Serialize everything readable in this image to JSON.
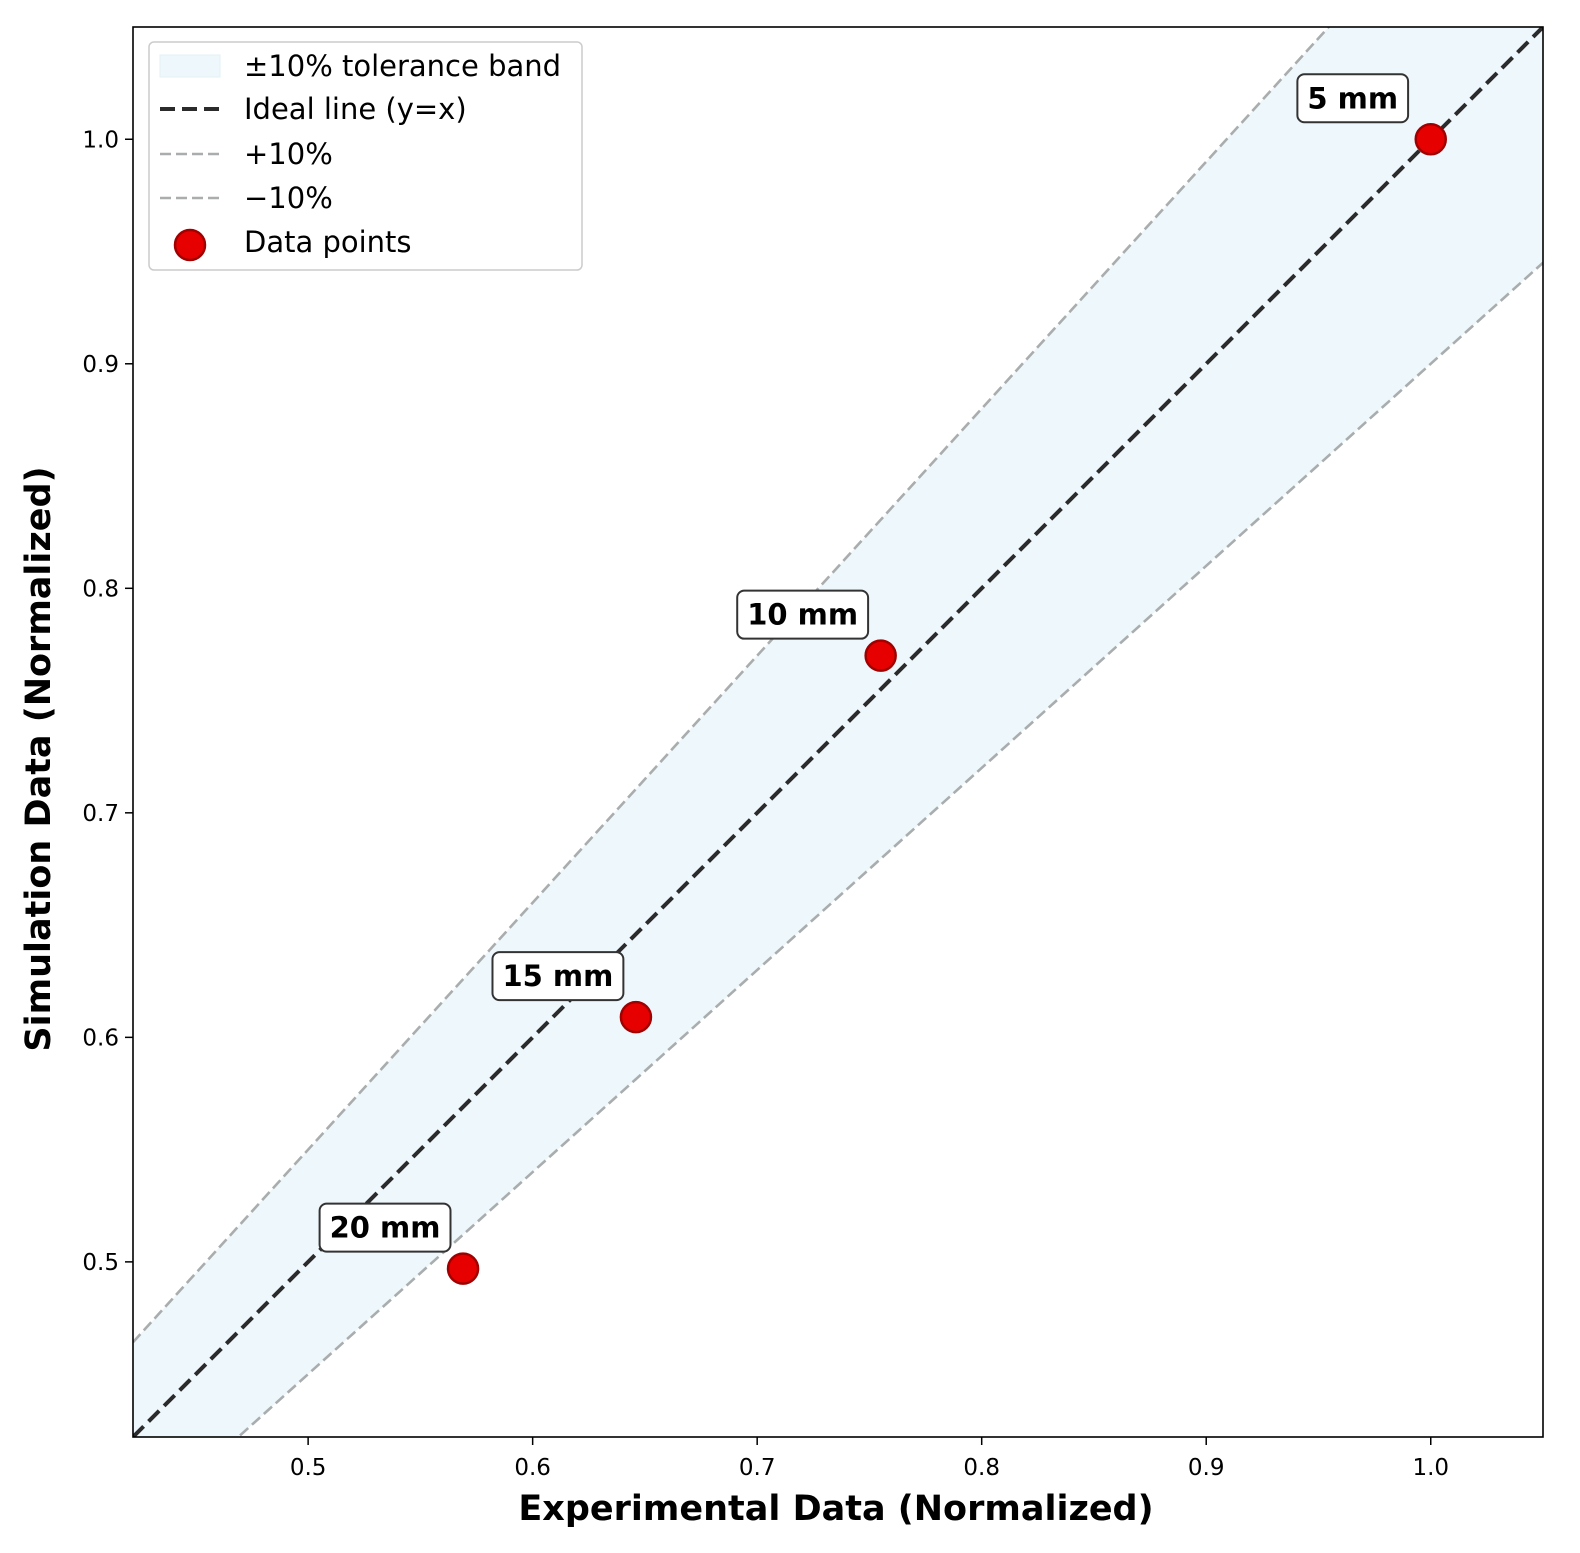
{
  "chart_data": {
    "type": "scatter",
    "title": "",
    "xlabel": "Experimental Data (Normalized)",
    "ylabel": "Simulation Data (Normalized)",
    "xlim": [
      0.422,
      1.05
    ],
    "ylim": [
      0.422,
      1.05
    ],
    "xticks": [
      0.5,
      0.6,
      0.7,
      0.8,
      0.9,
      1.0
    ],
    "yticks": [
      0.5,
      0.6,
      0.7,
      0.8,
      0.9,
      1.0
    ],
    "xtick_labels": [
      "0.5",
      "0.6",
      "0.7",
      "0.8",
      "0.9",
      "1.0"
    ],
    "ytick_labels": [
      "0.5",
      "0.6",
      "0.7",
      "0.8",
      "0.9",
      "1.0"
    ],
    "grid": false,
    "tolerance_fraction": 0.1,
    "series": [
      {
        "name": "Data points",
        "color": "#e60000",
        "edge_color": "#a00000",
        "points": [
          {
            "x": 1.0,
            "y": 1.0,
            "label": "5 mm"
          },
          {
            "x": 0.755,
            "y": 0.77,
            "label": "10 mm"
          },
          {
            "x": 0.646,
            "y": 0.609,
            "label": "15 mm"
          },
          {
            "x": 0.569,
            "y": 0.497,
            "label": "20 mm"
          }
        ]
      }
    ],
    "lines": [
      {
        "name": "Ideal line (y=x)",
        "slope": 1.0,
        "color": "#2b2b2b"
      },
      {
        "name": "+10%",
        "slope": 1.1,
        "color": "#a9adad"
      },
      {
        "name": "−10%",
        "slope": 0.9,
        "color": "#a9adad"
      }
    ],
    "band": {
      "name": "±10% tolerance band",
      "color": "#eef7fb"
    },
    "legend": {
      "placement": "top-left",
      "entries": [
        "±10% tolerance band",
        "Ideal line (y=x)",
        "+10%",
        "−10%",
        "Data points"
      ]
    }
  }
}
